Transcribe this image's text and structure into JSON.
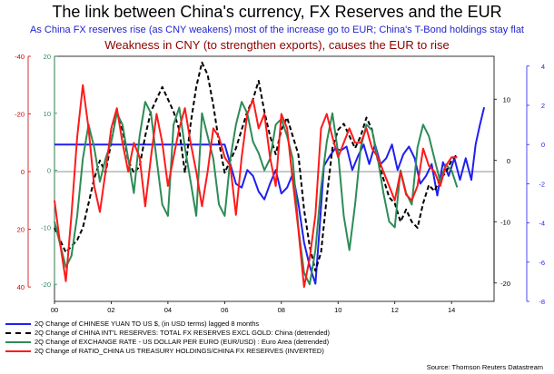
{
  "title": "The link between China's currency, FX Reserves and the EUR",
  "subtitle_blue": "As China FX reserves rise (as CNY weakens) most of the increase go to EUR; China's T-Bond holdings stay flat",
  "subtitle_red": "Weakness in CNY (to strengthen exports), causes the EUR to rise",
  "source": "Source: Thomson Reuters Datastream",
  "colors": {
    "blue": "#1f1ff0",
    "black": "#000000",
    "green": "#2e8b57",
    "red": "#ff1a1a",
    "axis_red": "#cc0000",
    "axis_green": "#2e8b57",
    "axis_blue": "#1f1ff0"
  },
  "legend": [
    {
      "color_key": "blue",
      "dashed": false,
      "label": "2Q Change of CHINESE YUAN TO  US $, (in USD terms) lagged 8 months"
    },
    {
      "color_key": "black",
      "dashed": true,
      "label": "2Q Change of CHINA INT'L RESERVES: TOTAL FX RESERVES EXCL GOLD: China (detrended)"
    },
    {
      "color_key": "green",
      "dashed": false,
      "label": "2Q Change of EXCHANGE RATE - US DOLLAR PER EURO (EUR/USD) : Euro Area (detrended)"
    },
    {
      "color_key": "red",
      "dashed": false,
      "label": "2Q Change of RATIO_CHINA US TREASURY HOLDINGS/CHINA FX RESERVES (INVERTED)"
    }
  ],
  "chart_data": {
    "type": "line",
    "xlim": [
      2000,
      2015.5
    ],
    "x_ticks": [
      "00",
      "02",
      "04",
      "06",
      "08",
      "10",
      "12",
      "14"
    ],
    "grid": false,
    "axes": {
      "red_left": {
        "ticks": [
          "-40",
          "-20",
          "0",
          "20",
          "40"
        ],
        "range": [
          -40,
          45
        ]
      },
      "green_left": {
        "ticks": [
          "20",
          "10",
          "0",
          "-10",
          "-20"
        ],
        "range": [
          20,
          -23
        ]
      },
      "black_right": {
        "ticks": [
          "10",
          "0",
          "-10",
          "-20"
        ],
        "range": [
          17,
          -23
        ]
      },
      "blue_right": {
        "ticks": [
          "4",
          "2",
          "0",
          "-2",
          "-4",
          "-6",
          "-8"
        ],
        "range": [
          4.5,
          -8
        ]
      }
    },
    "series": [
      {
        "name": "2Q Change of CHINESE YUAN TO  US $, (in USD terms) lagged 8 months",
        "color_key": "blue",
        "axis": "blue_right",
        "dashed": false,
        "x": [
          2000.0,
          2004.5,
          2005.5,
          2006.0,
          2006.2,
          2006.4,
          2006.6,
          2006.8,
          2007.0,
          2007.2,
          2007.4,
          2007.6,
          2007.8,
          2008.0,
          2008.2,
          2008.4,
          2008.6,
          2008.8,
          2009.0,
          2009.2,
          2009.35,
          2009.5,
          2009.7,
          2009.9,
          2010.1,
          2010.3,
          2010.5,
          2010.7,
          2010.9,
          2011.1,
          2011.3,
          2011.5,
          2011.7,
          2011.9,
          2012.1,
          2012.3,
          2012.5,
          2012.7,
          2012.9,
          2013.1,
          2013.3,
          2013.5,
          2013.7,
          2013.9,
          2014.1,
          2014.3,
          2014.5,
          2014.7,
          2014.85,
          2015.0,
          2015.15
        ],
        "values": [
          0.0,
          0.0,
          0.0,
          0.0,
          -1.0,
          -2.0,
          -2.2,
          -1.3,
          -1.6,
          -2.4,
          -2.8,
          -2.0,
          -1.3,
          -2.5,
          -2.2,
          -1.5,
          -3.0,
          -5.0,
          -6.2,
          -7.1,
          -4.2,
          -1.1,
          -0.6,
          -0.2,
          -0.3,
          -0.1,
          -1.3,
          -0.6,
          0.0,
          -1.0,
          0.0,
          -1.0,
          -0.7,
          0.0,
          -1.3,
          -0.5,
          -0.1,
          -0.7,
          -2.0,
          -1.6,
          -1.0,
          -2.6,
          -0.9,
          -1.6,
          -0.7,
          -1.8,
          -0.7,
          -1.8,
          0.0,
          1.0,
          1.9
        ]
      },
      {
        "name": "2Q Change of CHINA INT'L RESERVES: TOTAL FX RESERVES EXCL GOLD: China (detrended)",
        "color_key": "black",
        "axis": "black_right",
        "dashed": true,
        "x": [
          2000.0,
          2000.2,
          2000.4,
          2000.6,
          2000.8,
          2001.0,
          2001.2,
          2001.4,
          2001.6,
          2001.8,
          2002.0,
          2002.2,
          2002.4,
          2002.6,
          2002.8,
          2003.0,
          2003.2,
          2003.4,
          2003.6,
          2003.8,
          2004.0,
          2004.2,
          2004.4,
          2004.6,
          2004.8,
          2005.0,
          2005.2,
          2005.4,
          2005.6,
          2005.8,
          2006.0,
          2006.2,
          2006.4,
          2006.6,
          2006.8,
          2007.0,
          2007.2,
          2007.4,
          2007.6,
          2007.8,
          2008.0,
          2008.2,
          2008.4,
          2008.6,
          2008.8,
          2009.0,
          2009.2,
          2009.4,
          2009.6,
          2009.8,
          2010.0,
          2010.2,
          2010.4,
          2010.6,
          2010.8,
          2011.0,
          2011.2,
          2011.4,
          2011.6,
          2011.8,
          2012.0,
          2012.2,
          2012.4,
          2012.6,
          2012.8,
          2013.0,
          2013.2,
          2013.4,
          2013.6,
          2013.8,
          2014.0,
          2014.2
        ],
        "values": [
          -11.0,
          -13.0,
          -15.0,
          -14.0,
          -13.0,
          -11.0,
          -7.0,
          -3.0,
          0.0,
          -2.0,
          3.0,
          8.0,
          5.0,
          0.0,
          -2.0,
          -1.0,
          4.0,
          8.0,
          10.0,
          12.0,
          10.0,
          8.0,
          5.0,
          -2.0,
          6.0,
          12.0,
          16.0,
          14.0,
          9.0,
          3.0,
          -2.0,
          0.0,
          2.0,
          5.0,
          8.0,
          10.0,
          13.0,
          8.0,
          4.0,
          1.0,
          5.0,
          7.0,
          4.0,
          1.0,
          -8.0,
          -14.0,
          -18.0,
          -15.0,
          -6.0,
          2.0,
          5.0,
          6.0,
          4.0,
          2.0,
          4.0,
          7.0,
          5.0,
          0.0,
          -3.0,
          -6.0,
          -7.0,
          -10.0,
          -8.0,
          -10.0,
          -11.0,
          -7.0,
          -4.0,
          -5.0,
          -3.0,
          -2.0,
          0.0,
          1.0
        ]
      },
      {
        "name": "2Q Change of EXCHANGE RATE - US DOLLAR PER EURO (EUR/USD) : Euro Area (detrended)",
        "color_key": "green",
        "axis": "green_left",
        "dashed": false,
        "x": [
          2000.0,
          2000.2,
          2000.4,
          2000.6,
          2000.8,
          2001.0,
          2001.2,
          2001.4,
          2001.6,
          2001.8,
          2002.0,
          2002.2,
          2002.4,
          2002.6,
          2002.8,
          2003.0,
          2003.2,
          2003.4,
          2003.6,
          2003.8,
          2004.0,
          2004.2,
          2004.4,
          2004.6,
          2004.8,
          2005.0,
          2005.2,
          2005.4,
          2005.6,
          2005.8,
          2006.0,
          2006.2,
          2006.4,
          2006.6,
          2006.8,
          2007.0,
          2007.2,
          2007.4,
          2007.6,
          2007.8,
          2008.0,
          2008.2,
          2008.4,
          2008.6,
          2008.8,
          2009.0,
          2009.2,
          2009.4,
          2009.6,
          2009.8,
          2010.0,
          2010.2,
          2010.4,
          2010.6,
          2010.8,
          2011.0,
          2011.2,
          2011.4,
          2011.6,
          2011.8,
          2012.0,
          2012.2,
          2012.4,
          2012.6,
          2012.8,
          2013.0,
          2013.2,
          2013.4,
          2013.6,
          2013.8,
          2014.0,
          2014.2
        ],
        "values": [
          -9.0,
          -13.0,
          -17.0,
          -15.0,
          -8.0,
          2.0,
          8.0,
          4.0,
          -2.0,
          2.0,
          5.0,
          10.0,
          8.0,
          2.0,
          -4.0,
          6.0,
          12.0,
          10.0,
          2.0,
          -6.0,
          -8.0,
          8.0,
          11.0,
          4.0,
          -2.0,
          -8.0,
          10.0,
          6.0,
          2.0,
          -6.0,
          -8.0,
          2.0,
          8.0,
          12.0,
          10.0,
          5.0,
          3.0,
          0.0,
          2.0,
          8.0,
          9.0,
          6.0,
          2.0,
          -10.0,
          -18.0,
          -20.0,
          -14.0,
          -3.0,
          5.0,
          10.0,
          3.0,
          -8.0,
          -14.0,
          -6.0,
          4.0,
          8.0,
          7.0,
          2.0,
          -4.0,
          -9.0,
          -10.0,
          0.0,
          -4.0,
          -6.0,
          4.0,
          8.0,
          6.0,
          2.0,
          -2.0,
          1.0,
          0.0,
          -3.0
        ]
      },
      {
        "name": "2Q Change of RATIO_CHINA US TREASURY HOLDINGS/CHINA FX RESERVES (INVERTED)",
        "color_key": "red",
        "axis": "red_left",
        "dashed": false,
        "x": [
          2000.0,
          2000.2,
          2000.4,
          2000.6,
          2000.8,
          2001.0,
          2001.2,
          2001.4,
          2001.6,
          2001.8,
          2002.0,
          2002.2,
          2002.4,
          2002.6,
          2002.8,
          2003.0,
          2003.2,
          2003.4,
          2003.6,
          2003.8,
          2004.0,
          2004.2,
          2004.4,
          2004.6,
          2004.8,
          2005.0,
          2005.2,
          2005.4,
          2005.6,
          2005.8,
          2006.0,
          2006.2,
          2006.4,
          2006.6,
          2006.8,
          2007.0,
          2007.2,
          2007.4,
          2007.6,
          2007.8,
          2008.0,
          2008.2,
          2008.4,
          2008.6,
          2008.8,
          2009.0,
          2009.2,
          2009.4,
          2009.6,
          2009.8,
          2010.0,
          2010.2,
          2010.4,
          2010.6,
          2010.8,
          2011.0,
          2011.2,
          2011.4,
          2011.6,
          2011.8,
          2012.0,
          2012.2,
          2012.4,
          2012.6,
          2012.8,
          2013.0,
          2013.2,
          2013.4,
          2013.6,
          2013.8,
          2014.0,
          2014.2
        ],
        "values": [
          10.0,
          25.0,
          38.0,
          15.0,
          -12.0,
          -30.0,
          -15.0,
          5.0,
          14.0,
          0.0,
          -15.0,
          -22.0,
          -10.0,
          0.0,
          -10.0,
          -5.0,
          12.0,
          -5.0,
          -20.0,
          -10.0,
          5.0,
          -5.0,
          -15.0,
          -22.0,
          -10.0,
          0.0,
          12.0,
          0.0,
          -15.0,
          -12.0,
          -5.0,
          -2.0,
          15.0,
          -5.0,
          -20.0,
          -25.0,
          -15.0,
          -20.0,
          -5.0,
          5.0,
          -20.0,
          -15.0,
          3.0,
          20.0,
          40.0,
          30.0,
          15.0,
          -15.0,
          -20.0,
          -12.0,
          -5.0,
          -10.0,
          -15.0,
          -10.0,
          -10.0,
          -15.0,
          -8.0,
          -5.0,
          0.0,
          5.0,
          10.0,
          0.0,
          8.0,
          10.0,
          5.0,
          -8.0,
          -2.0,
          0.0,
          5.0,
          -2.0,
          -5.0,
          -5.0
        ]
      }
    ]
  }
}
